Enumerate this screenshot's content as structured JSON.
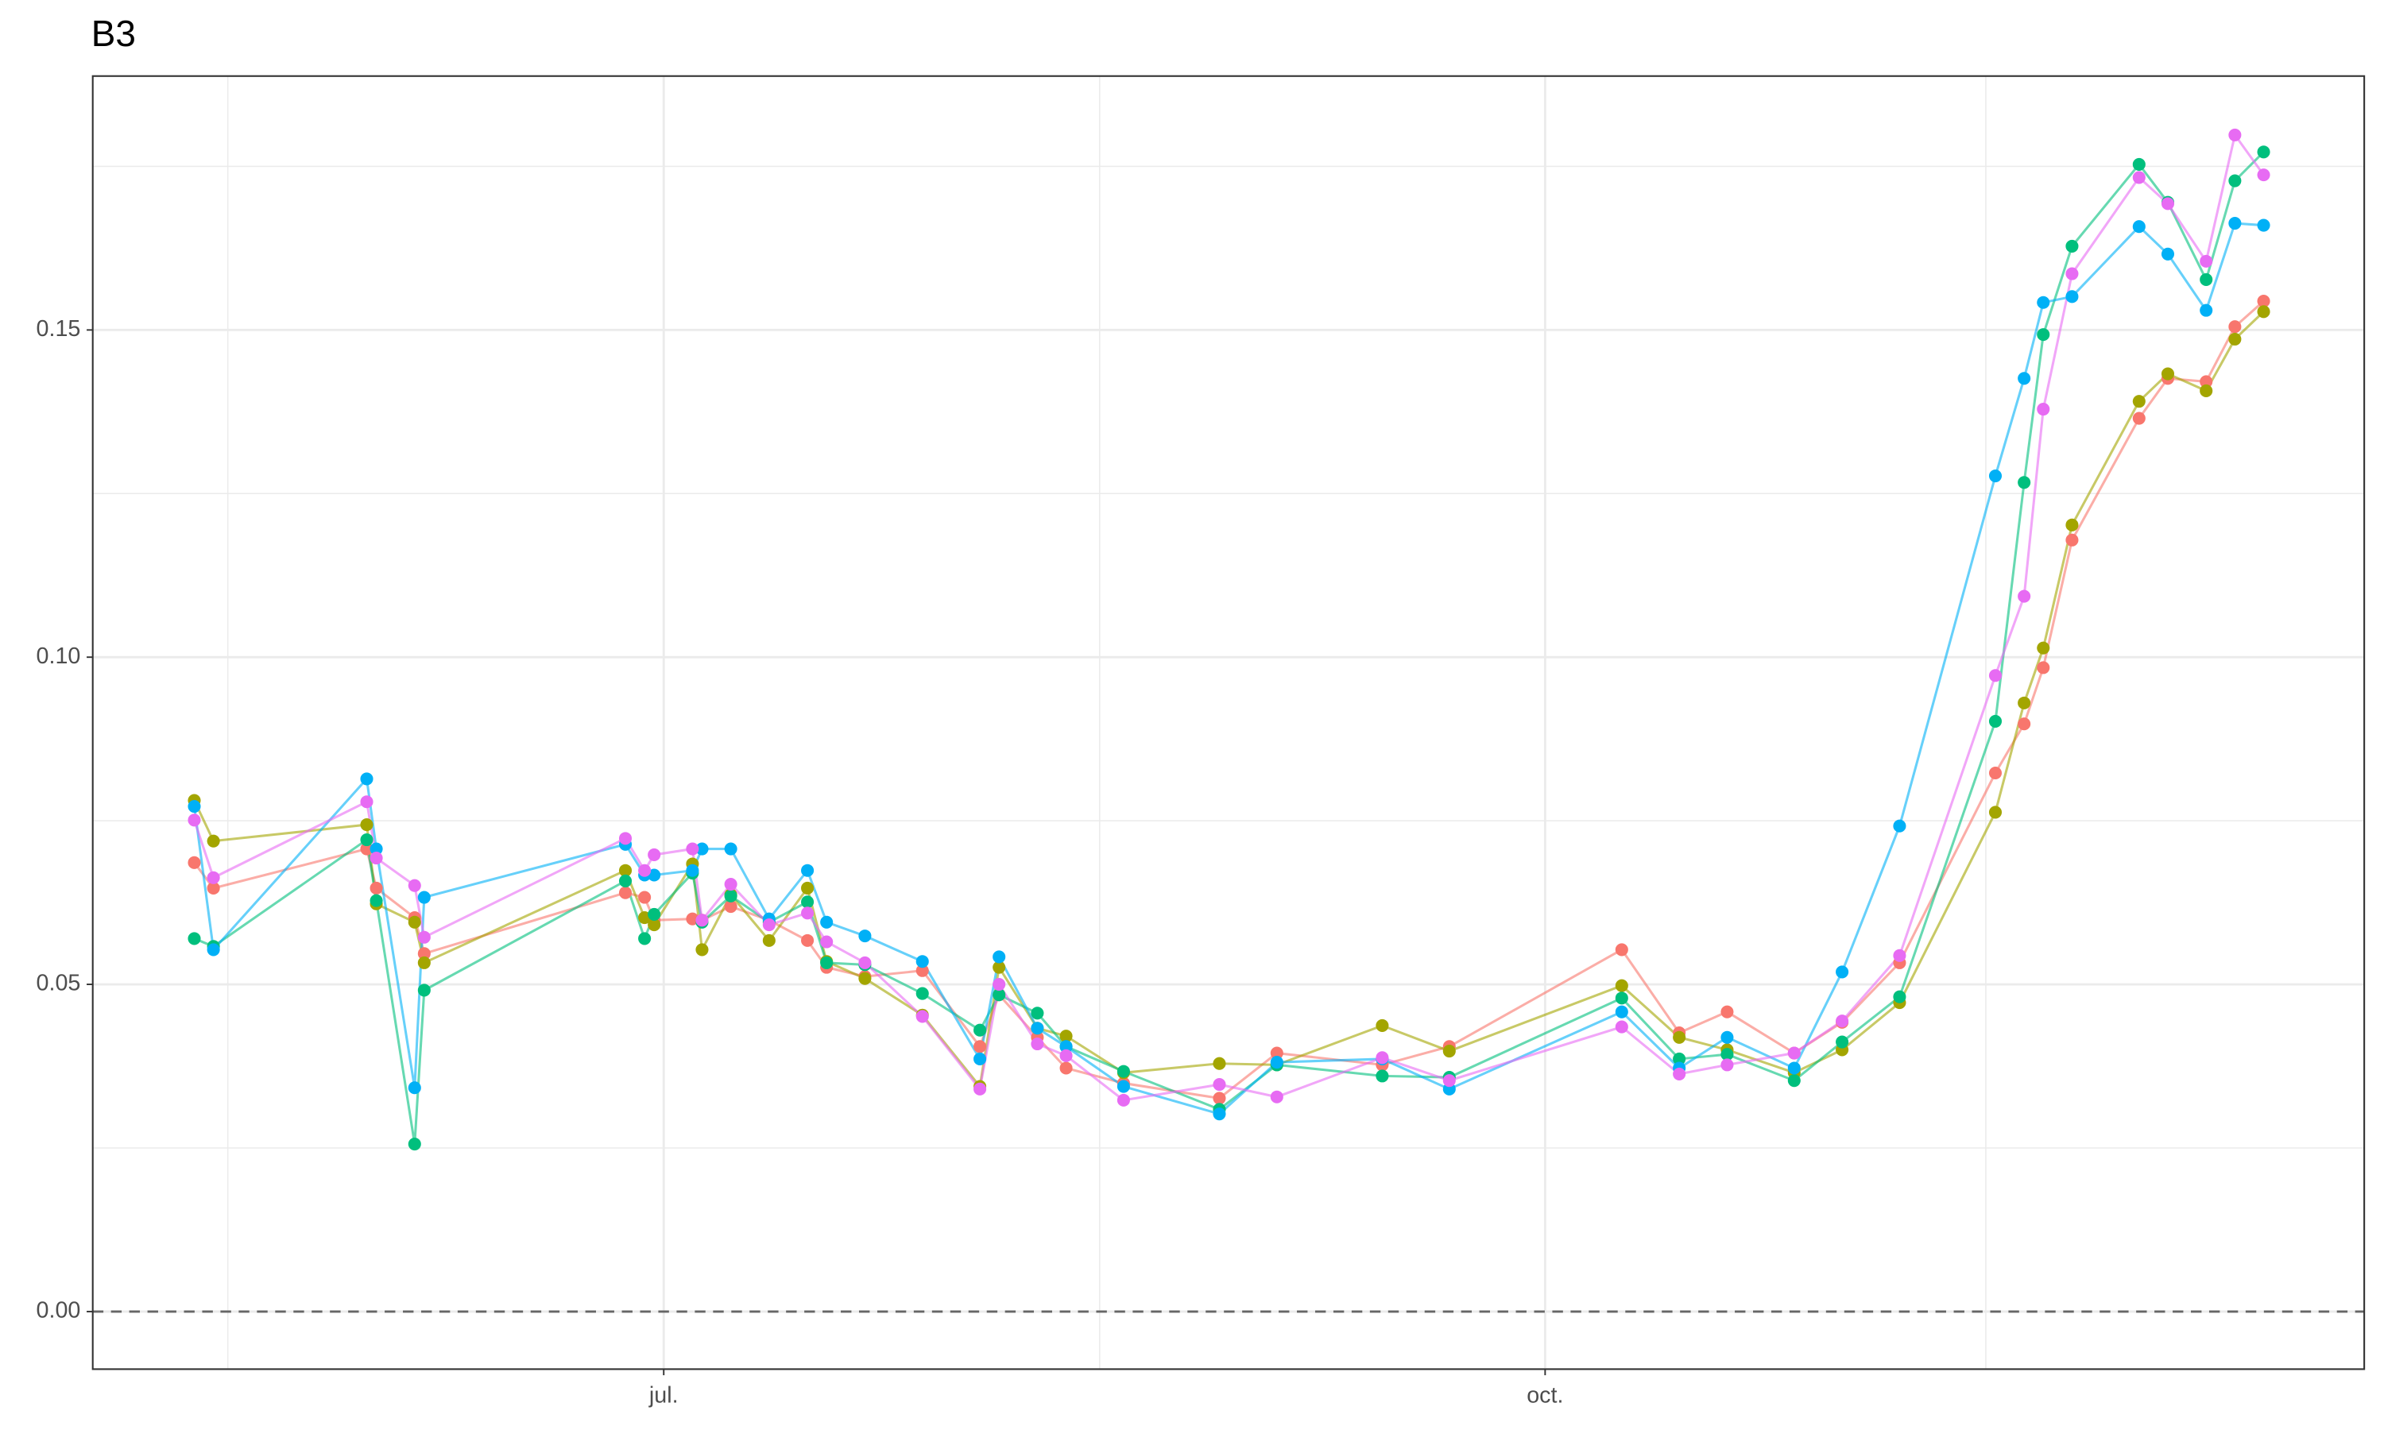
{
  "chart_data": {
    "type": "line",
    "title": "B3",
    "x": [
      133,
      135,
      151,
      152,
      156,
      157,
      178,
      180,
      181,
      185,
      186,
      189,
      193,
      197,
      199,
      203,
      209,
      215,
      217,
      221,
      224,
      230,
      240,
      246,
      257,
      264,
      282,
      288,
      293,
      300,
      305,
      311,
      321,
      324,
      326,
      329,
      336,
      339,
      343,
      346,
      349
    ],
    "series": [
      {
        "color": "#F8766D",
        "values": [
          0.0686,
          0.0647,
          0.0707,
          0.0647,
          0.0602,
          0.0547,
          0.064,
          0.0633,
          0.0598,
          0.06,
          0.0598,
          0.0619,
          0.0598,
          0.0567,
          0.0526,
          0.0512,
          0.0521,
          0.0405,
          0.0484,
          0.0419,
          0.0372,
          0.0349,
          0.0326,
          0.0395,
          0.0377,
          0.0405,
          0.0553,
          0.0426,
          0.0458,
          0.0395,
          0.0442,
          0.0533,
          0.0823,
          0.0898,
          0.0984,
          0.1179,
          0.1365,
          0.1426,
          0.1421,
          0.1505,
          0.1544
        ]
      },
      {
        "color": "#A3A500",
        "values": [
          0.0781,
          0.0719,
          0.0744,
          0.0623,
          0.0595,
          0.0533,
          0.0674,
          0.0602,
          0.0591,
          0.0684,
          0.0553,
          0.0637,
          0.0567,
          0.0647,
          0.0535,
          0.0509,
          0.0453,
          0.0344,
          0.0526,
          0.0433,
          0.0421,
          0.0365,
          0.0379,
          0.0377,
          0.0437,
          0.0398,
          0.0498,
          0.0419,
          0.04,
          0.0365,
          0.04,
          0.0472,
          0.0763,
          0.093,
          0.1014,
          0.1202,
          0.1391,
          0.1433,
          0.1407,
          0.1486,
          0.1528
        ]
      },
      {
        "color": "#00BF7D",
        "values": [
          0.057,
          0.0558,
          0.0721,
          0.0628,
          0.0256,
          0.0491,
          0.0658,
          0.057,
          0.0607,
          0.067,
          0.0595,
          0.0635,
          0.0595,
          0.0626,
          0.0533,
          0.053,
          0.0486,
          0.043,
          0.0484,
          0.0456,
          0.0405,
          0.0367,
          0.0309,
          0.0377,
          0.036,
          0.0358,
          0.0479,
          0.0386,
          0.0393,
          0.0353,
          0.0412,
          0.0481,
          0.0902,
          0.1267,
          0.1493,
          0.1628,
          0.1753,
          0.1695,
          0.1577,
          0.1728,
          0.1772
        ]
      },
      {
        "color": "#00B0F6",
        "values": [
          0.0772,
          0.0553,
          0.0814,
          0.0707,
          0.0342,
          0.0633,
          0.0714,
          0.0667,
          0.0667,
          0.0674,
          0.0707,
          0.0707,
          0.06,
          0.0674,
          0.0595,
          0.0574,
          0.0535,
          0.0386,
          0.0542,
          0.0433,
          0.0405,
          0.0344,
          0.0302,
          0.0381,
          0.0386,
          0.034,
          0.0458,
          0.0372,
          0.0419,
          0.0372,
          0.0519,
          0.0742,
          0.1277,
          0.1426,
          0.1542,
          0.1551,
          0.1658,
          0.1616,
          0.153,
          0.1663,
          0.166
        ]
      },
      {
        "color": "#E76BF3",
        "values": [
          0.0751,
          0.0663,
          0.0779,
          0.0693,
          0.0651,
          0.0572,
          0.0723,
          0.0674,
          0.0698,
          0.0707,
          0.0598,
          0.0653,
          0.0591,
          0.0609,
          0.0565,
          0.0533,
          0.0451,
          0.034,
          0.05,
          0.0409,
          0.0391,
          0.0323,
          0.0347,
          0.0328,
          0.0388,
          0.0353,
          0.0435,
          0.0363,
          0.0377,
          0.0395,
          0.0444,
          0.0544,
          0.0972,
          0.1093,
          0.1379,
          0.1586,
          0.1733,
          0.1693,
          0.1605,
          0.1798,
          0.1737
        ]
      }
    ],
    "xlim": [
      122.4,
      359.5
    ],
    "xticks": [
      {
        "value": 182,
        "label": "jul."
      },
      {
        "value": 274,
        "label": "oct."
      }
    ],
    "xminor": [
      136.5,
      227.5,
      320
    ],
    "ylim": [
      -0.0088,
      0.1888
    ],
    "yticks": [
      {
        "value": 0,
        "label": "0.00"
      },
      0.05,
      {
        "value": 0.1,
        "label": "0.10"
      },
      0.15
    ],
    "yminor": [
      0.025,
      0.075,
      0.125,
      0.175
    ],
    "hline": 0,
    "grid": true
  }
}
